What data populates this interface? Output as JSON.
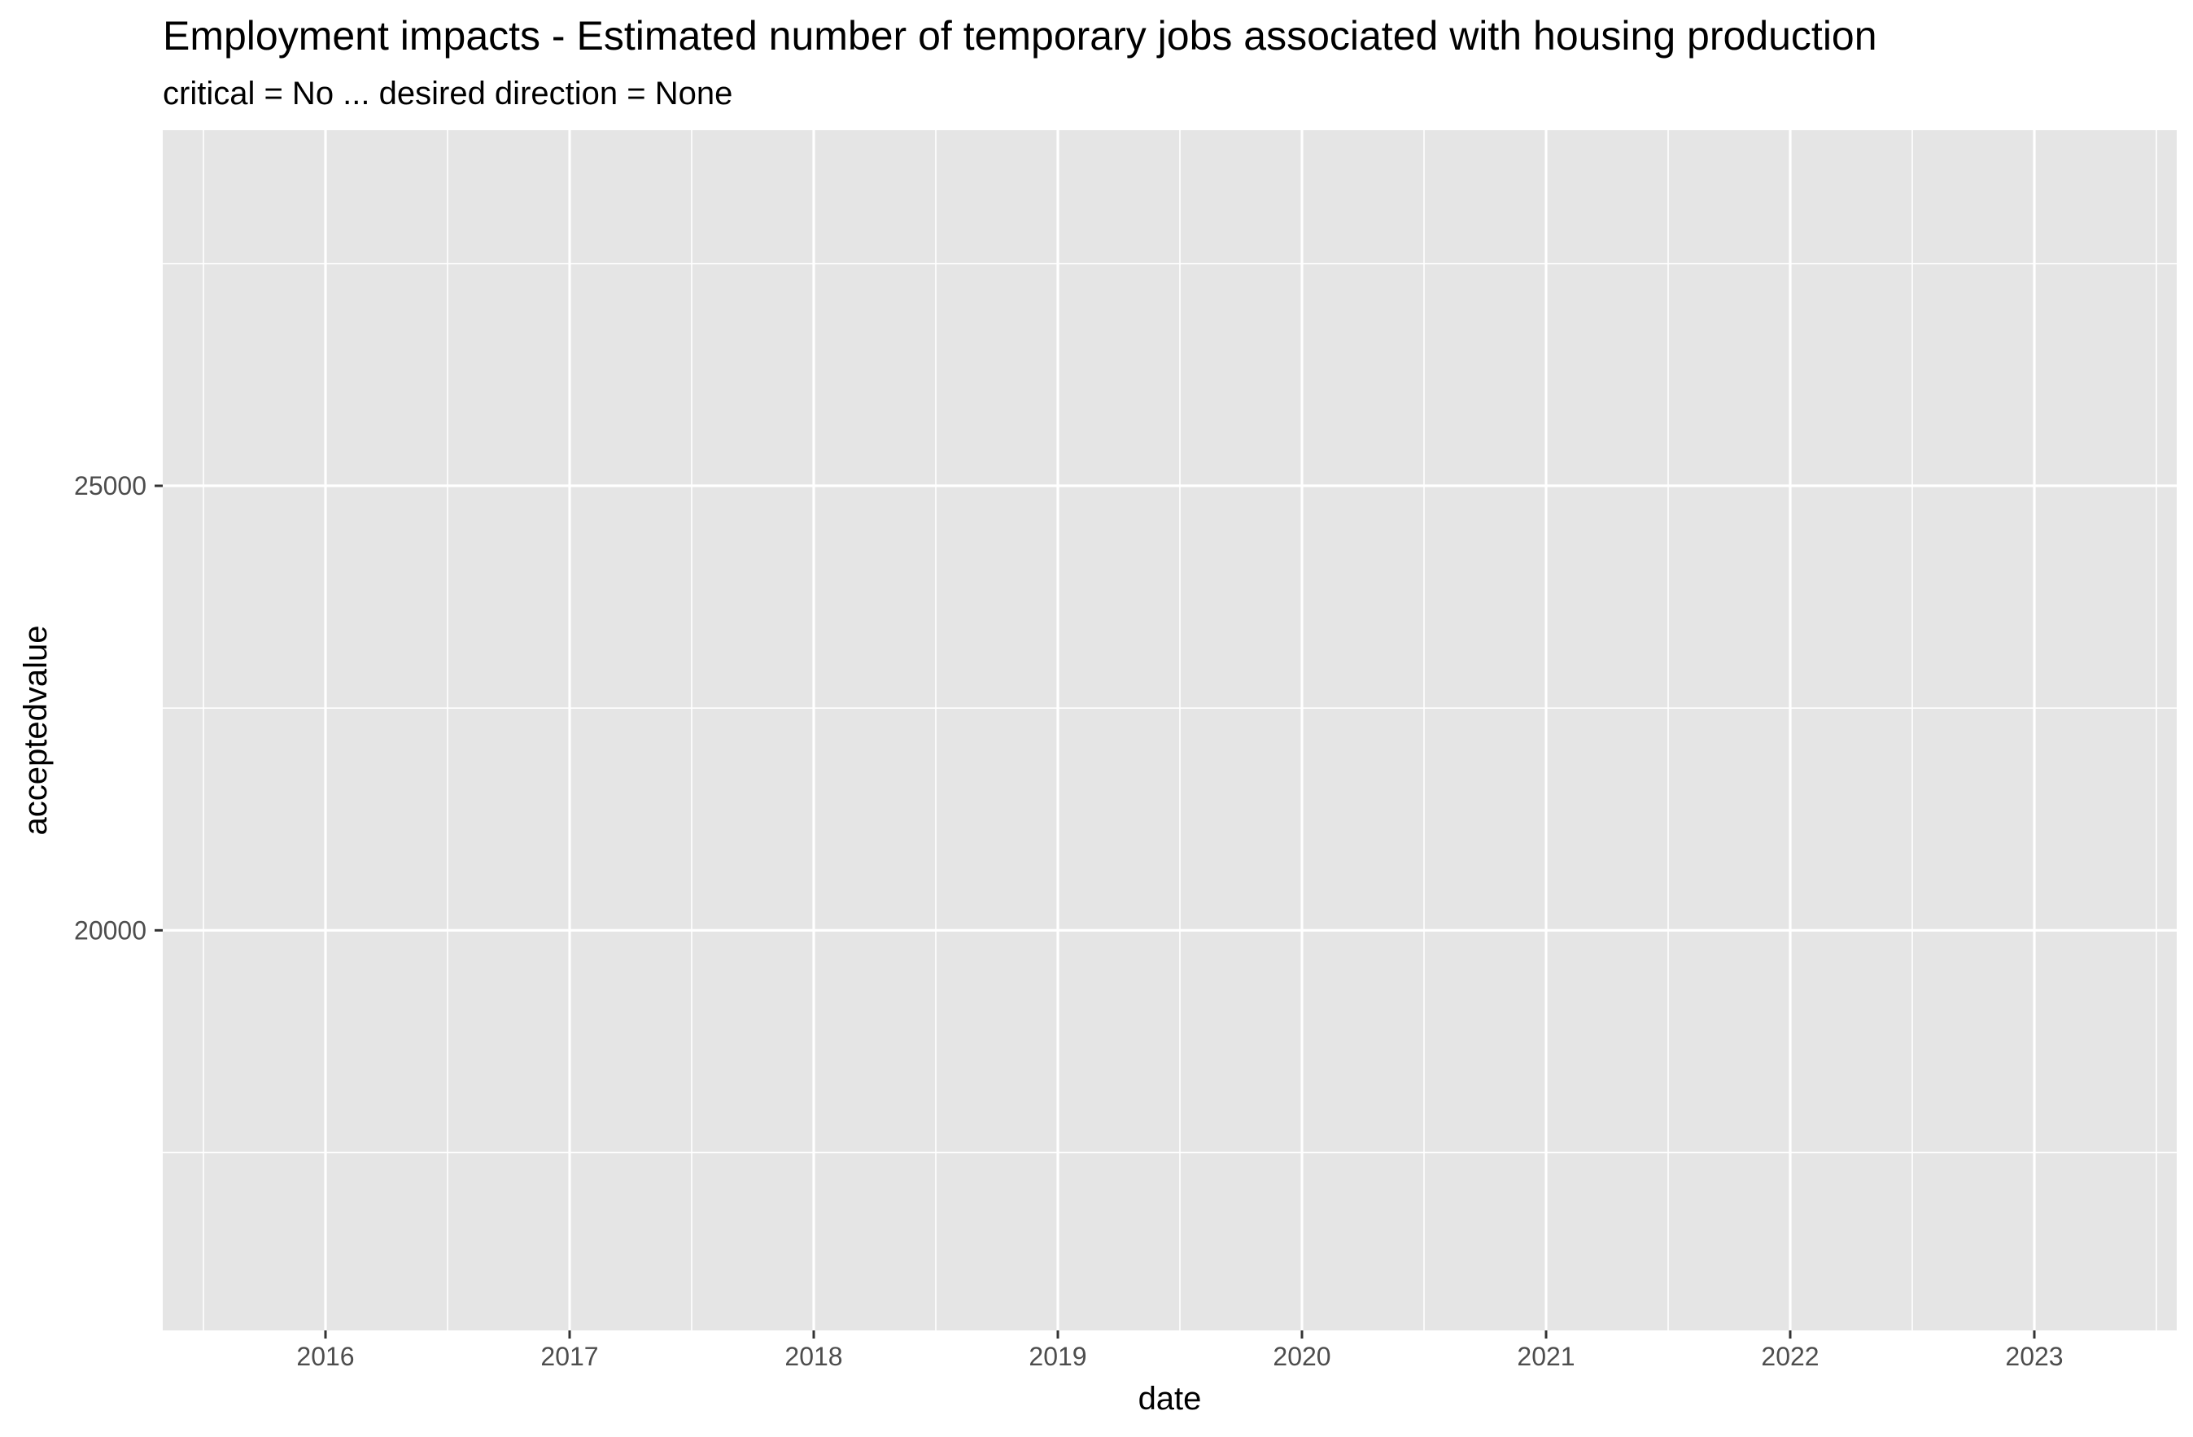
{
  "chart_data": {
    "type": "line",
    "title": "Employment impacts - Estimated number of temporary jobs associated with housing production",
    "subtitle": "critical = No ... desired direction = None",
    "xlabel": "date",
    "ylabel": "acceptedvalue",
    "x_ticks": [
      "2016",
      "2017",
      "2018",
      "2019",
      "2020",
      "2021",
      "2022",
      "2023"
    ],
    "y_ticks": [
      20000,
      25000
    ],
    "xlim": [
      "2015-05",
      "2023-08"
    ],
    "ylim": [
      15500,
      29000
    ],
    "grid": true,
    "series": [],
    "colors": {
      "panel_background": "#e5e5e5",
      "grid_major": "#ffffff",
      "tick_label": "#4d4d4d",
      "axis_tick": "#333333"
    }
  }
}
